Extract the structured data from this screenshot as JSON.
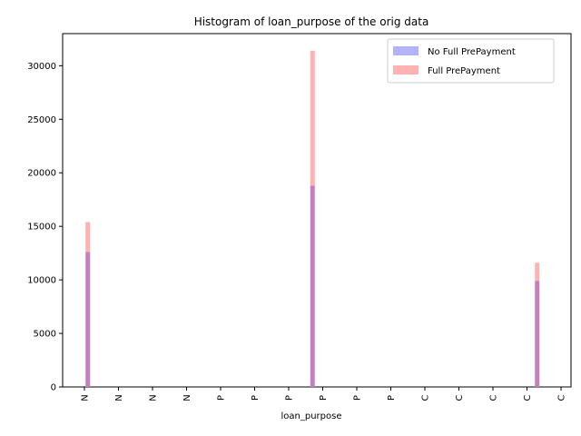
{
  "chart_data": {
    "type": "bar",
    "title": "Histogram of loan_purpose of the orig data",
    "xlabel": "loan_purpose",
    "ylabel": "",
    "ylim": [
      0,
      33000
    ],
    "yticks": [
      0,
      5000,
      10000,
      15000,
      20000,
      25000,
      30000
    ],
    "x_tick_labels": [
      "N",
      "N",
      "N",
      "N",
      "P",
      "P",
      "P",
      "P",
      "P",
      "P",
      "C",
      "C",
      "C",
      "C",
      "C"
    ],
    "bins": [
      {
        "position": 0.1,
        "no_full_prepayment": 12600,
        "full_prepayment": 15400
      },
      {
        "position": 6.7,
        "no_full_prepayment": 18800,
        "full_prepayment": 31400
      },
      {
        "position": 13.3,
        "no_full_prepayment": 9900,
        "full_prepayment": 11600
      }
    ],
    "series": [
      {
        "name": "No Full PrePayment",
        "color": "#b2b2ff"
      },
      {
        "name": "Full PrePayment",
        "color": "#ffb2b2"
      }
    ],
    "overlap_color": "#c47fbf",
    "legend_position": "top-right",
    "grid": false
  }
}
